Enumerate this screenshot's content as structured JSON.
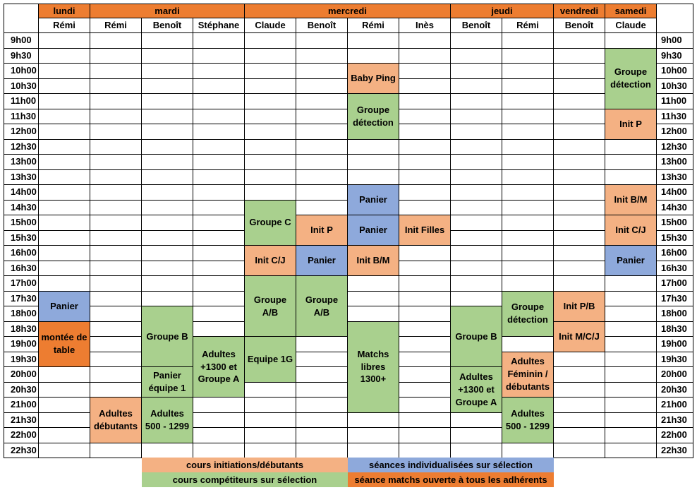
{
  "colors": {
    "init": "#f4b183",
    "compet": "#a9d08e",
    "indiv": "#8ea9db",
    "match": "#ed7d31",
    "day_header": "#ed7d31"
  },
  "days": [
    {
      "label": "lundi",
      "start": 0,
      "span": 1
    },
    {
      "label": "mardi",
      "start": 1,
      "span": 3
    },
    {
      "label": "mercredi",
      "start": 4,
      "span": 4
    },
    {
      "label": "jeudi",
      "start": 8,
      "span": 2
    },
    {
      "label": "vendredi",
      "start": 10,
      "span": 1
    },
    {
      "label": "samedi",
      "start": 11,
      "span": 1
    }
  ],
  "coaches": [
    "Rémi",
    "Rémi",
    "Benoît",
    "Stéphane",
    "Claude",
    "Benoît",
    "Rémi",
    "Inès",
    "Benoît",
    "Rémi",
    "Benoît",
    "Claude"
  ],
  "times": [
    "9h00",
    "9h30",
    "10h00",
    "10h30",
    "11h00",
    "11h30",
    "12h00",
    "12h30",
    "13h00",
    "13h30",
    "14h00",
    "14h30",
    "15h00",
    "15h30",
    "16h00",
    "16h30",
    "17h00",
    "17h30",
    "18h00",
    "18h30",
    "19h00",
    "19h30",
    "20h00",
    "20h30",
    "21h00",
    "21h30",
    "22h00",
    "22h30"
  ],
  "events": [
    {
      "col": 0,
      "row": 17,
      "span": 2,
      "label": "Panier",
      "type": "indiv"
    },
    {
      "col": 0,
      "row": 19,
      "span": 3,
      "label": "montée de table",
      "type": "match"
    },
    {
      "col": 1,
      "row": 24,
      "span": 3,
      "label": "Adultes débutants",
      "type": "init"
    },
    {
      "col": 2,
      "row": 18,
      "span": 4,
      "label": "Groupe B",
      "type": "compet"
    },
    {
      "col": 2,
      "row": 22,
      "span": 2,
      "label": "Panier équipe 1",
      "type": "compet"
    },
    {
      "col": 2,
      "row": 24,
      "span": 3,
      "label": "Adultes 500 - 1299",
      "type": "compet"
    },
    {
      "col": 3,
      "row": 20,
      "span": 4,
      "label": "Adultes +1300 et Groupe A",
      "type": "compet"
    },
    {
      "col": 4,
      "row": 11,
      "span": 3,
      "label": "Groupe C",
      "type": "compet"
    },
    {
      "col": 4,
      "row": 14,
      "span": 2,
      "label": "Init C/J",
      "type": "init"
    },
    {
      "col": 4,
      "row": 16,
      "span": 4,
      "label": "Groupe A/B",
      "type": "compet"
    },
    {
      "col": 4,
      "row": 20,
      "span": 3,
      "label": "Equipe 1G",
      "type": "compet"
    },
    {
      "col": 5,
      "row": 12,
      "span": 2,
      "label": "Init P",
      "type": "init"
    },
    {
      "col": 5,
      "row": 14,
      "span": 2,
      "label": "Panier",
      "type": "indiv"
    },
    {
      "col": 5,
      "row": 16,
      "span": 4,
      "label": "Groupe A/B",
      "type": "compet"
    },
    {
      "col": 6,
      "row": 2,
      "span": 2,
      "label": "Baby Ping",
      "type": "init"
    },
    {
      "col": 6,
      "row": 4,
      "span": 3,
      "label": "Groupe détection",
      "type": "compet"
    },
    {
      "col": 6,
      "row": 10,
      "span": 2,
      "label": "Panier",
      "type": "indiv"
    },
    {
      "col": 6,
      "row": 12,
      "span": 2,
      "label": "Panier",
      "type": "indiv"
    },
    {
      "col": 6,
      "row": 14,
      "span": 2,
      "label": "Init B/M",
      "type": "init"
    },
    {
      "col": 6,
      "row": 19,
      "span": 6,
      "label": "Matchs libres 1300+",
      "type": "compet"
    },
    {
      "col": 7,
      "row": 12,
      "span": 2,
      "label": "Init Filles",
      "type": "init"
    },
    {
      "col": 8,
      "row": 18,
      "span": 4,
      "label": "Groupe B",
      "type": "compet"
    },
    {
      "col": 8,
      "row": 22,
      "span": 3,
      "label": "Adultes +1300 et Groupe A",
      "type": "compet"
    },
    {
      "col": 9,
      "row": 17,
      "span": 3,
      "label": "Groupe détection",
      "type": "compet"
    },
    {
      "col": 9,
      "row": 21,
      "span": 3,
      "label": "Adultes Féminin / débutants",
      "type": "init"
    },
    {
      "col": 9,
      "row": 24,
      "span": 3,
      "label": "Adultes 500 - 1299",
      "type": "compet"
    },
    {
      "col": 10,
      "row": 17,
      "span": 2,
      "label": "Init P/B",
      "type": "init"
    },
    {
      "col": 10,
      "row": 19,
      "span": 2,
      "label": "Init M/C/J",
      "type": "init"
    },
    {
      "col": 11,
      "row": 1,
      "span": 4,
      "label": "Groupe détection",
      "type": "compet"
    },
    {
      "col": 11,
      "row": 5,
      "span": 2,
      "label": "Init P",
      "type": "init"
    },
    {
      "col": 11,
      "row": 10,
      "span": 2,
      "label": "Init B/M",
      "type": "init"
    },
    {
      "col": 11,
      "row": 12,
      "span": 2,
      "label": "Init C/J",
      "type": "init"
    },
    {
      "col": 11,
      "row": 14,
      "span": 2,
      "label": "Panier",
      "type": "indiv"
    }
  ],
  "legend": [
    {
      "label": "cours initiations/débutants",
      "type": "init"
    },
    {
      "label": "séances individualisées sur sélection",
      "type": "indiv"
    },
    {
      "label": "cours compétiteurs sur sélection",
      "type": "compet"
    },
    {
      "label": "séance matchs ouverte à tous les adhérents",
      "type": "match"
    }
  ]
}
